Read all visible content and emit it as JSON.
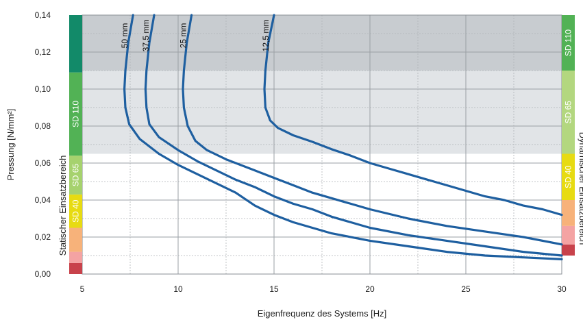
{
  "chart_data": {
    "type": "line",
    "xlabel": "Eigenfrequenz des Systems [Hz]",
    "ylabel": "Pressung [N/mm²]",
    "left_axis_title": "Statischer Einsatzbereich",
    "right_axis_title": "Dynamischer Einsatzbereich",
    "xlim": [
      5,
      30
    ],
    "ylim": [
      0,
      0.14
    ],
    "x_ticks": [
      5,
      10,
      15,
      20,
      25,
      30
    ],
    "x_tick_labels": [
      "5",
      "10",
      "15",
      "20",
      "25",
      "30"
    ],
    "y_ticks": [
      0,
      0.02,
      0.04,
      0.06,
      0.08,
      0.1,
      0.12,
      0.14
    ],
    "y_tick_labels": [
      "0,00",
      "0,02",
      "0,04",
      "0,06",
      "0,08",
      "0,10",
      "0,12",
      "0,14"
    ],
    "grid": true,
    "line_color": "#1e5fa0",
    "shaded_regions": [
      {
        "y": [
          0.065,
          0.11
        ],
        "color": "#e1e4e7"
      },
      {
        "y": [
          0.11,
          0.14
        ],
        "color": "#c8ccd0"
      }
    ],
    "series": [
      {
        "name": "12,5 mm",
        "points": [
          [
            15.0,
            0.14
          ],
          [
            14.7,
            0.125
          ],
          [
            14.55,
            0.11
          ],
          [
            14.5,
            0.1
          ],
          [
            14.55,
            0.09
          ],
          [
            14.8,
            0.083
          ],
          [
            15.2,
            0.079
          ],
          [
            16,
            0.075
          ],
          [
            17,
            0.0715
          ],
          [
            18,
            0.0675
          ],
          [
            19,
            0.064
          ],
          [
            20,
            0.06
          ],
          [
            21,
            0.057
          ],
          [
            22,
            0.054
          ],
          [
            23,
            0.051
          ],
          [
            24,
            0.048
          ],
          [
            25,
            0.045
          ],
          [
            26,
            0.042
          ],
          [
            27,
            0.04
          ],
          [
            28,
            0.037
          ],
          [
            29,
            0.035
          ],
          [
            30,
            0.032
          ]
        ]
      },
      {
        "name": "25 mm",
        "points": [
          [
            10.7,
            0.14
          ],
          [
            10.45,
            0.125
          ],
          [
            10.3,
            0.11
          ],
          [
            10.25,
            0.1
          ],
          [
            10.3,
            0.09
          ],
          [
            10.5,
            0.08
          ],
          [
            10.9,
            0.072
          ],
          [
            11.5,
            0.067
          ],
          [
            12.5,
            0.062
          ],
          [
            14,
            0.056
          ],
          [
            15,
            0.052
          ],
          [
            16,
            0.048
          ],
          [
            17,
            0.044
          ],
          [
            18,
            0.041
          ],
          [
            19,
            0.038
          ],
          [
            20,
            0.035
          ],
          [
            22,
            0.03
          ],
          [
            24,
            0.026
          ],
          [
            26,
            0.023
          ],
          [
            28,
            0.02
          ],
          [
            30,
            0.016
          ]
        ]
      },
      {
        "name": "37,5 mm",
        "points": [
          [
            8.75,
            0.14
          ],
          [
            8.5,
            0.125
          ],
          [
            8.35,
            0.11
          ],
          [
            8.3,
            0.1
          ],
          [
            8.35,
            0.09
          ],
          [
            8.5,
            0.081
          ],
          [
            9,
            0.074
          ],
          [
            10,
            0.067
          ],
          [
            11,
            0.061
          ],
          [
            12,
            0.056
          ],
          [
            13,
            0.051
          ],
          [
            14,
            0.047
          ],
          [
            15,
            0.042
          ],
          [
            16,
            0.038
          ],
          [
            17,
            0.035
          ],
          [
            18,
            0.031
          ],
          [
            20,
            0.025
          ],
          [
            22,
            0.021
          ],
          [
            24,
            0.018
          ],
          [
            26,
            0.015
          ],
          [
            28,
            0.012
          ],
          [
            30,
            0.01
          ]
        ]
      },
      {
        "name": "50 mm",
        "points": [
          [
            7.65,
            0.14
          ],
          [
            7.4,
            0.125
          ],
          [
            7.25,
            0.11
          ],
          [
            7.2,
            0.1
          ],
          [
            7.25,
            0.09
          ],
          [
            7.45,
            0.081
          ],
          [
            8,
            0.073
          ],
          [
            9,
            0.065
          ],
          [
            10,
            0.059
          ],
          [
            11,
            0.054
          ],
          [
            12,
            0.049
          ],
          [
            13,
            0.044
          ],
          [
            14,
            0.037
          ],
          [
            15,
            0.032
          ],
          [
            16,
            0.028
          ],
          [
            17,
            0.025
          ],
          [
            18,
            0.022
          ],
          [
            20,
            0.018
          ],
          [
            22,
            0.015
          ],
          [
            24,
            0.012
          ],
          [
            26,
            0.01
          ],
          [
            28,
            0.009
          ],
          [
            30,
            0.008
          ]
        ]
      }
    ],
    "left_bands": [
      {
        "label": "",
        "y": [
          0,
          0.006
        ],
        "color": "#c8424b"
      },
      {
        "label": "",
        "y": [
          0.006,
          0.012
        ],
        "color": "#f4a3a3"
      },
      {
        "label": "",
        "y": [
          0.012,
          0.025
        ],
        "color": "#f7b27a"
      },
      {
        "label": "SD 40",
        "y": [
          0.025,
          0.043
        ],
        "color": "#e7db12"
      },
      {
        "label": "SD 65",
        "y": [
          0.043,
          0.064
        ],
        "color": "#a6d26e"
      },
      {
        "label": "SD 110",
        "y": [
          0.064,
          0.109
        ],
        "color": "#52b255"
      },
      {
        "label": "",
        "y": [
          0.109,
          0.14
        ],
        "color": "#128a69"
      }
    ],
    "right_bands": [
      {
        "label": "",
        "y": [
          0.01,
          0.016
        ],
        "color": "#c8424b"
      },
      {
        "label": "",
        "y": [
          0.016,
          0.026
        ],
        "color": "#f4a3a3"
      },
      {
        "label": "",
        "y": [
          0.026,
          0.04
        ],
        "color": "#f7b27a"
      },
      {
        "label": "SD 40",
        "y": [
          0.04,
          0.065
        ],
        "color": "#e7db12"
      },
      {
        "label": "SD 65",
        "y": [
          0.065,
          0.11
        ],
        "color": "#b3d77f"
      },
      {
        "label": "SD 110",
        "y": [
          0.11,
          0.14
        ],
        "color": "#52b255"
      }
    ]
  }
}
